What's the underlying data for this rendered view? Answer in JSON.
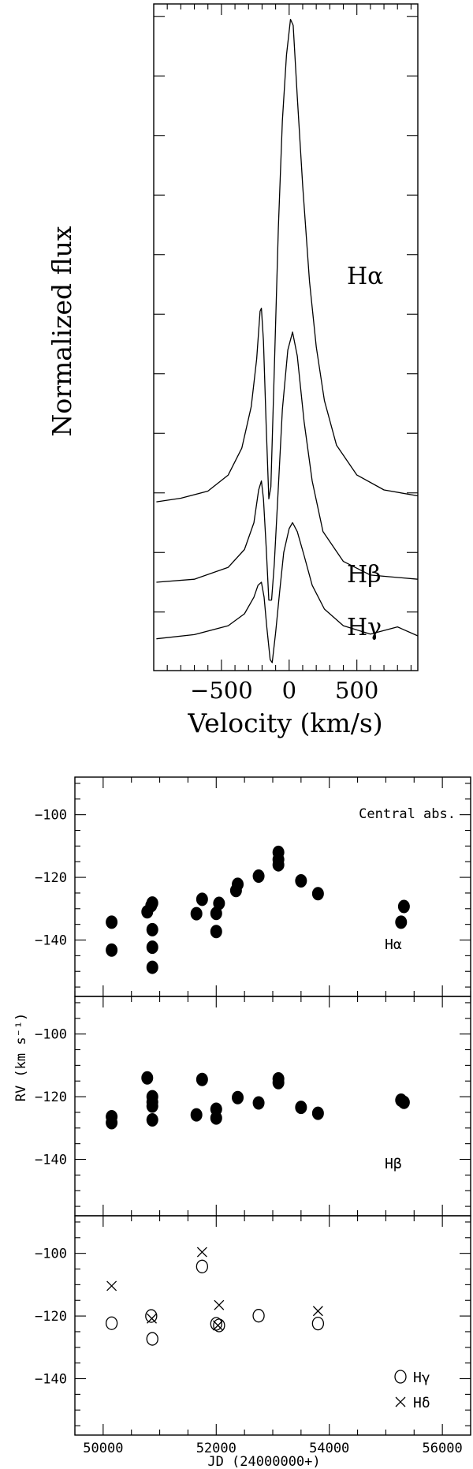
{
  "chart_data": [
    {
      "type": "line",
      "xlabel": "Velocity (km/s)",
      "ylabel": "Normalized flux",
      "xlim": [
        -1000,
        950
      ],
      "xticks": [
        -500,
        0,
        500
      ],
      "profile_peak_scale": [
        0,
        10
      ],
      "series": [
        {
          "name": "Hα",
          "offset": 1.35,
          "points": [
            [
              -980,
              0
            ],
            [
              -800,
              0.06
            ],
            [
              -600,
              0.18
            ],
            [
              -450,
              0.45
            ],
            [
              -350,
              0.9
            ],
            [
              -280,
              1.6
            ],
            [
              -240,
              2.4
            ],
            [
              -215,
              3.2
            ],
            [
              -205,
              3.25
            ],
            [
              -190,
              2.7
            ],
            [
              -170,
              1.3
            ],
            [
              -150,
              0.05
            ],
            [
              -135,
              0.25
            ],
            [
              -110,
              2.2
            ],
            [
              -80,
              4.6
            ],
            [
              -50,
              6.4
            ],
            [
              -20,
              7.5
            ],
            [
              10,
              8.1
            ],
            [
              30,
              8.0
            ],
            [
              60,
              6.8
            ],
            [
              100,
              5.3
            ],
            [
              150,
              3.7
            ],
            [
              200,
              2.6
            ],
            [
              260,
              1.7
            ],
            [
              350,
              0.95
            ],
            [
              500,
              0.45
            ],
            [
              700,
              0.2
            ],
            [
              950,
              0.1
            ]
          ]
        },
        {
          "name": "Hβ",
          "offset": 0.0,
          "points": [
            [
              -980,
              0
            ],
            [
              -700,
              0.05
            ],
            [
              -450,
              0.25
            ],
            [
              -330,
              0.55
            ],
            [
              -260,
              1.0
            ],
            [
              -225,
              1.55
            ],
            [
              -205,
              1.7
            ],
            [
              -190,
              1.4
            ],
            [
              -170,
              0.6
            ],
            [
              -150,
              -0.3
            ],
            [
              -130,
              -0.3
            ],
            [
              -110,
              0.3
            ],
            [
              -80,
              1.6
            ],
            [
              -50,
              2.9
            ],
            [
              -10,
              3.9
            ],
            [
              25,
              4.2
            ],
            [
              60,
              3.8
            ],
            [
              110,
              2.7
            ],
            [
              170,
              1.7
            ],
            [
              250,
              0.85
            ],
            [
              400,
              0.35
            ],
            [
              600,
              0.12
            ],
            [
              950,
              0.05
            ]
          ]
        },
        {
          "name": "Hγ",
          "offset": -0.95,
          "points": [
            [
              -980,
              0
            ],
            [
              -700,
              0.07
            ],
            [
              -450,
              0.22
            ],
            [
              -330,
              0.42
            ],
            [
              -260,
              0.7
            ],
            [
              -230,
              0.9
            ],
            [
              -205,
              0.95
            ],
            [
              -185,
              0.7
            ],
            [
              -165,
              0.2
            ],
            [
              -140,
              -0.35
            ],
            [
              -125,
              -0.4
            ],
            [
              -100,
              0.1
            ],
            [
              -70,
              0.8
            ],
            [
              -40,
              1.45
            ],
            [
              0,
              1.85
            ],
            [
              25,
              1.95
            ],
            [
              60,
              1.8
            ],
            [
              110,
              1.4
            ],
            [
              170,
              0.9
            ],
            [
              260,
              0.5
            ],
            [
              400,
              0.22
            ],
            [
              600,
              0.08
            ],
            [
              800,
              0.2
            ],
            [
              950,
              0.05
            ]
          ]
        }
      ]
    },
    {
      "type": "scatter",
      "xlabel": "JD (24000000+)",
      "ylabel": "RV (km s⁻¹)",
      "xlim": [
        49500,
        56500
      ],
      "xticks": [
        50000,
        52000,
        54000,
        56000
      ],
      "yticks": [
        -100,
        -120,
        -140
      ],
      "panels": [
        {
          "label": "Hα",
          "corner_note": "Central abs.",
          "ylim": [
            -158,
            -88
          ],
          "series": [
            {
              "name": "Hα",
              "marker": "filled-circle",
              "points": [
                [
                  50150,
                  -134.3
                ],
                [
                  50150,
                  -143.2
                ],
                [
                  50780,
                  -131.0
                ],
                [
                  50850,
                  -129.0
                ],
                [
                  50870,
                  -128.2
                ],
                [
                  50870,
                  -136.7
                ],
                [
                  50870,
                  -142.3
                ],
                [
                  50870,
                  -148.7
                ],
                [
                  51650,
                  -131.6
                ],
                [
                  51750,
                  -127.0
                ],
                [
                  52000,
                  -131.5
                ],
                [
                  52000,
                  -137.3
                ],
                [
                  52050,
                  -128.3
                ],
                [
                  52350,
                  -124.2
                ],
                [
                  52380,
                  -122.2
                ],
                [
                  52750,
                  -119.6
                ],
                [
                  53100,
                  -112.0
                ],
                [
                  53100,
                  -114.3
                ],
                [
                  53100,
                  -116.0
                ],
                [
                  53500,
                  -121.1
                ],
                [
                  53800,
                  -125.2
                ],
                [
                  55270,
                  -134.3
                ],
                [
                  55320,
                  -129.3
                ]
              ]
            }
          ]
        },
        {
          "label": "Hβ",
          "ylim": [
            -158,
            -88
          ],
          "series": [
            {
              "name": "Hβ",
              "marker": "filled-circle",
              "points": [
                [
                  50150,
                  -126.4
                ],
                [
                  50150,
                  -128.3
                ],
                [
                  50780,
                  -114.0
                ],
                [
                  50870,
                  -120.0
                ],
                [
                  50870,
                  -121.7
                ],
                [
                  50870,
                  -123.0
                ],
                [
                  50870,
                  -127.4
                ],
                [
                  51650,
                  -125.8
                ],
                [
                  51750,
                  -114.5
                ],
                [
                  52000,
                  -124.0
                ],
                [
                  52000,
                  -126.8
                ],
                [
                  52380,
                  -120.3
                ],
                [
                  52750,
                  -122.0
                ],
                [
                  53100,
                  -114.3
                ],
                [
                  53100,
                  -115.5
                ],
                [
                  53500,
                  -123.4
                ],
                [
                  53800,
                  -125.3
                ],
                [
                  55270,
                  -121.1
                ],
                [
                  55320,
                  -121.8
                ]
              ]
            }
          ]
        },
        {
          "label": "",
          "ylim": [
            -158,
            -88
          ],
          "legend": [
            "Hγ",
            "Hδ"
          ],
          "series": [
            {
              "name": "Hγ",
              "marker": "open-circle",
              "points": [
                [
                  50150,
                  -122.3
                ],
                [
                  50850,
                  -120.0
                ],
                [
                  50870,
                  -127.3
                ],
                [
                  51750,
                  -104.2
                ],
                [
                  52000,
                  -122.5
                ],
                [
                  52050,
                  -123.0
                ],
                [
                  52750,
                  -119.9
                ],
                [
                  53800,
                  -122.4
                ]
              ]
            },
            {
              "name": "Hδ",
              "marker": "cross",
              "points": [
                [
                  50150,
                  -110.4
                ],
                [
                  50860,
                  -120.8
                ],
                [
                  51750,
                  -99.6
                ],
                [
                  52050,
                  -116.5
                ],
                [
                  52030,
                  -123.0
                ],
                [
                  53800,
                  -118.4
                ]
              ]
            }
          ]
        }
      ]
    }
  ]
}
